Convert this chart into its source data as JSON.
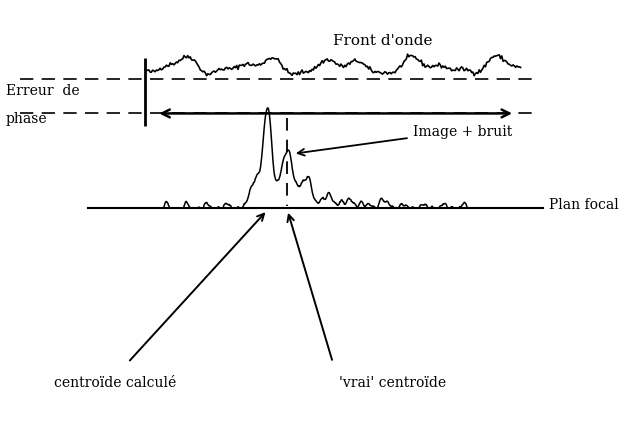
{
  "bg_color": "white",
  "labels": {
    "front_donde": "Front d'onde",
    "erreur_de": "Erreur  de",
    "phase": "phase",
    "image_bruit": "Image + bruit",
    "plan_focal": "Plan focal",
    "centroide_calc": "centroïde calculé",
    "vrai_centroide": "'vrai' centroïde"
  }
}
